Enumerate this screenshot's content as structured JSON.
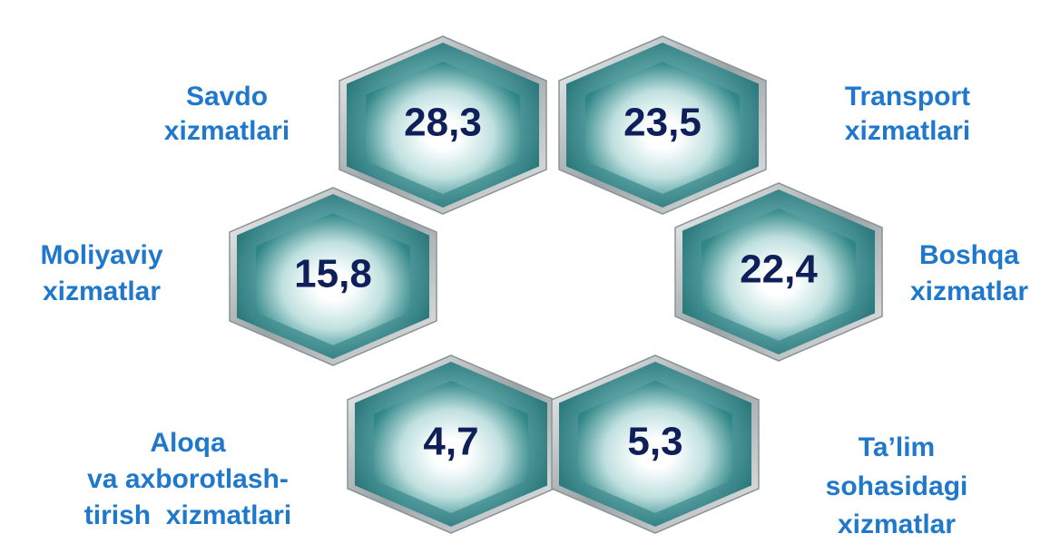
{
  "nodes": [
    {
      "value": "28,3",
      "label": [
        "Savdo",
        "xizmatlari"
      ]
    },
    {
      "value": "23,5",
      "label": [
        "Transport",
        "xizmatlari"
      ]
    },
    {
      "value": "15,8",
      "label": [
        "Moliyaviy",
        "xizmatlar"
      ]
    },
    {
      "value": "22,4",
      "label": [
        "Boshqa",
        "xizmatlar"
      ]
    },
    {
      "value": "4,7",
      "label": [
        "Aloqa",
        "va axborotlash-",
        "tirish  xizmatlari"
      ]
    },
    {
      "value": "5,3",
      "label": [
        "Ta’lim",
        "sohasidagi",
        "xizmatlar"
      ]
    }
  ]
}
